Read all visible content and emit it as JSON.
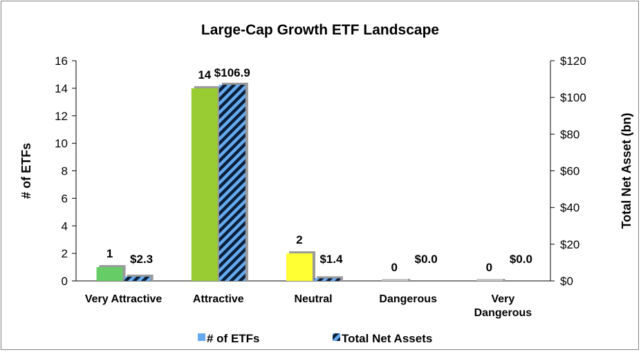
{
  "chart_data": {
    "type": "bar",
    "title": "Large-Cap Growth ETF Landscape",
    "categories": [
      [
        "Very Attractive"
      ],
      [
        "Attractive"
      ],
      [
        "Neutral"
      ],
      [
        "Dangerous"
      ],
      [
        "Very",
        "Dangerous"
      ]
    ],
    "y_left": {
      "label": "# of ETFs",
      "lim": [
        0,
        16
      ],
      "ticks": [
        "0",
        "2",
        "4",
        "6",
        "8",
        "10",
        "12",
        "14",
        "16"
      ]
    },
    "y_right": {
      "label": "Total Net Asset (bn)",
      "lim": [
        0,
        120
      ],
      "ticks": [
        "$0",
        "$20",
        "$40",
        "$60",
        "$80",
        "$100",
        "$120"
      ]
    },
    "series": [
      {
        "name": "# of ETFs",
        "axis": "left",
        "values": [
          1,
          14,
          2,
          0,
          0
        ],
        "labels": [
          "1",
          "14",
          "2",
          "0",
          "0"
        ],
        "colors": [
          "#66cc66",
          "#99cc33",
          "#ffff33",
          "#cccccc",
          "#cccccc"
        ],
        "legend_color": "#66aaee"
      },
      {
        "name": "Total Net Assets",
        "axis": "right",
        "values": [
          2.3,
          106.9,
          1.4,
          0.0,
          0.0
        ],
        "labels": [
          "$2.3",
          "$106.9",
          "$1.4",
          "$0.0",
          "$0.0"
        ],
        "stripe_colors": [
          "#66aaee",
          "#0a1f3a"
        ]
      }
    ],
    "legend": {
      "position": "bottom"
    },
    "grid": false
  }
}
